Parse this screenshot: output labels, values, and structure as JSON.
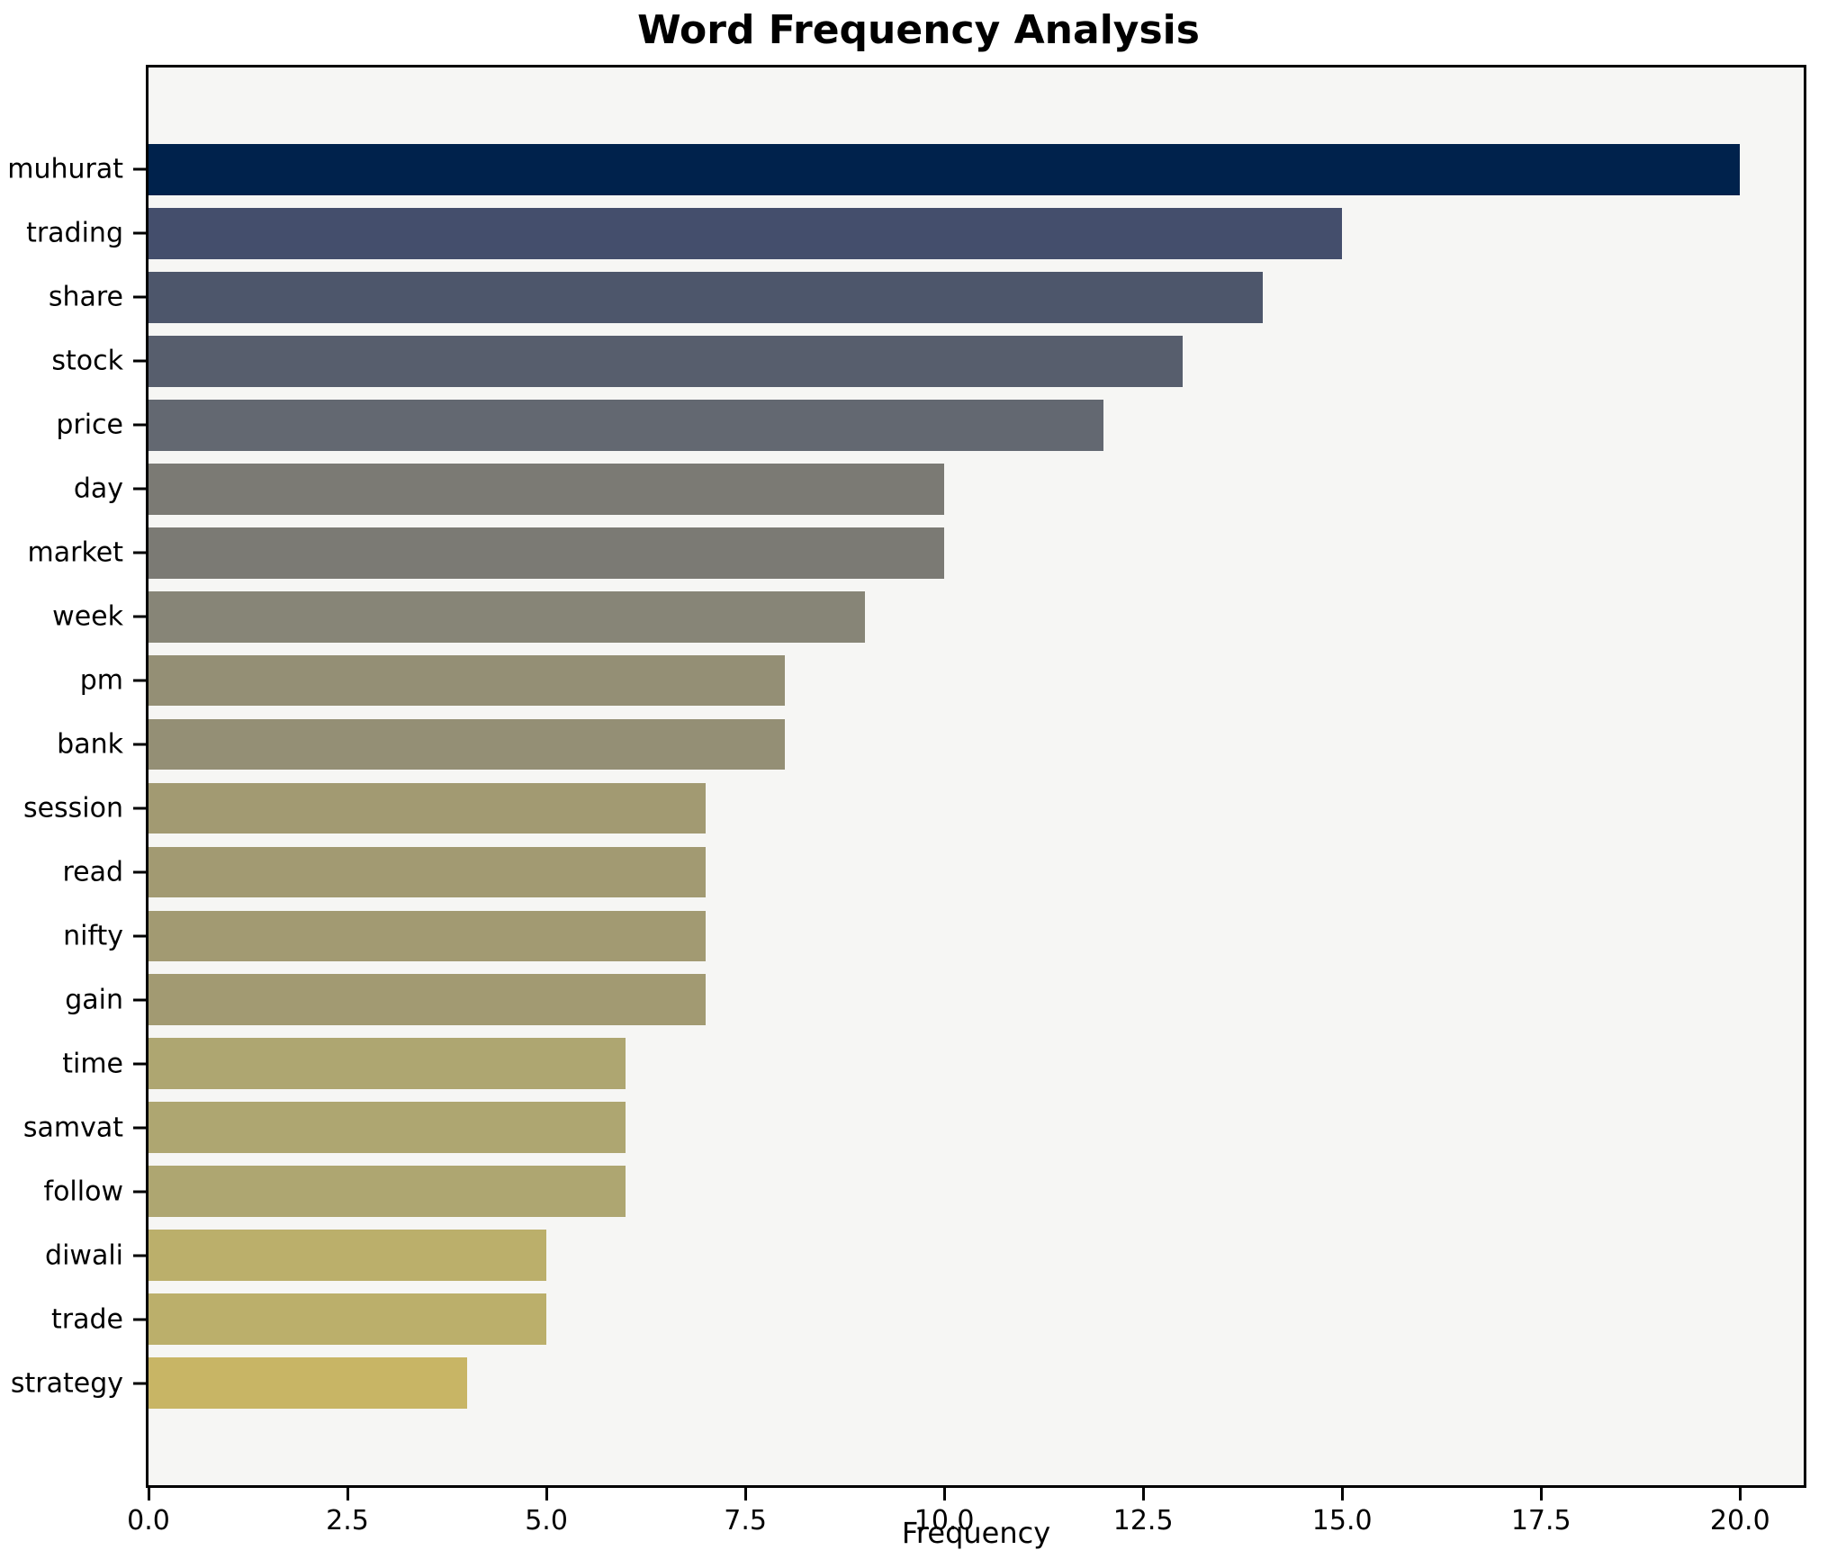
{
  "chart_data": {
    "type": "bar",
    "orientation": "horizontal",
    "title": "Word Frequency Analysis",
    "xlabel": "Frequency",
    "ylabel": "",
    "grid": false,
    "legend": null,
    "xlim": [
      0,
      20.8
    ],
    "xticks": [
      {
        "value": 0,
        "label": "0.0"
      },
      {
        "value": 2.5,
        "label": "2.5"
      },
      {
        "value": 5,
        "label": "5.0"
      },
      {
        "value": 7.5,
        "label": "7.5"
      },
      {
        "value": 10,
        "label": "10.0"
      },
      {
        "value": 12.5,
        "label": "12.5"
      },
      {
        "value": 15,
        "label": "15.0"
      },
      {
        "value": 17.5,
        "label": "17.5"
      },
      {
        "value": 20,
        "label": "20.0"
      }
    ],
    "categories": [
      "muhurat",
      "trading",
      "share",
      "stock",
      "price",
      "day",
      "market",
      "week",
      "pm",
      "bank",
      "session",
      "read",
      "nifty",
      "gain",
      "time",
      "samvat",
      "follow",
      "diwali",
      "trade",
      "strategy"
    ],
    "values": [
      20,
      15,
      14,
      13,
      12,
      10,
      10,
      9,
      8,
      8,
      7,
      7,
      7,
      7,
      6,
      6,
      6,
      5,
      5,
      4
    ],
    "bar_colors": [
      "#00224c",
      "#444e6c",
      "#4d566b",
      "#575e6d",
      "#636871",
      "#7b7a74",
      "#7b7a74",
      "#878577",
      "#948f75",
      "#948f75",
      "#a29a72",
      "#a29a72",
      "#a29a72",
      "#a29a72",
      "#aea671",
      "#aea671",
      "#aea671",
      "#bbaf6b",
      "#bbaf6b",
      "#c8b565"
    ]
  },
  "style": {
    "plot_background": "#f6f6f4",
    "figure_background": "#ffffff",
    "spine_color": "#000000",
    "text_color": "#000000"
  }
}
